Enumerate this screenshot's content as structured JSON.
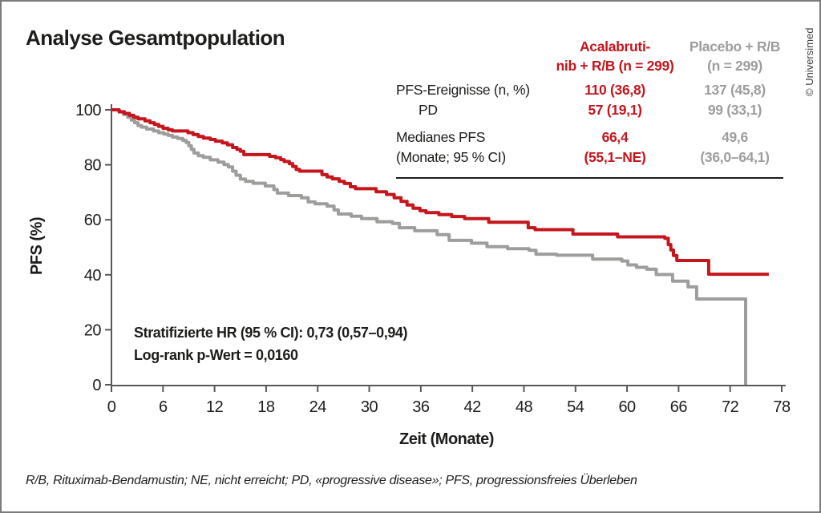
{
  "title": "Analyse Gesamtpopulation",
  "credit": "© Universimed",
  "footnote": "R/B, Rituximab-Bendamustin; NE, nicht erreicht; PD, «progressive disease»; PFS, progressionsfreies Überleben",
  "stats_table": {
    "acala_header_line1": "Acalabruti-",
    "acala_header_line2": "nib + R/B (n = 299)",
    "placebo_header_line1": "Placebo + R/B",
    "placebo_header_line2": "(n = 299)",
    "acala_color": "#c4161c",
    "placebo_color": "#9d9d9c",
    "row_pfs_events": {
      "label": "PFS-Ereignisse (n, %)",
      "acala": "110 (36,8)",
      "placebo": "137 (45,8)"
    },
    "row_pd": {
      "label": "PD",
      "acala": "57 (19,1)",
      "placebo": "99 (33,1)"
    },
    "row_median": {
      "label_line1": "Medianes PFS",
      "label_line2": "(Monate; 95 % CI)",
      "acala_line1": "66,4",
      "acala_line2": "(55,1–NE)",
      "placebo_line1": "49,6",
      "placebo_line2": "(36,0–64,1)"
    }
  },
  "chart_data": {
    "type": "line",
    "subtype": "kaplan-meier-step",
    "title": "Analyse Gesamtpopulation",
    "xlabel": "Zeit (Monate)",
    "ylabel": "PFS (%)",
    "xlim": [
      0,
      78
    ],
    "ylim": [
      0,
      100
    ],
    "x_ticks": [
      0,
      6,
      12,
      18,
      24,
      30,
      36,
      42,
      48,
      54,
      60,
      66,
      72,
      78
    ],
    "y_ticks": [
      0,
      20,
      40,
      60,
      80,
      100
    ],
    "grid": false,
    "legend_position": "table-top-right",
    "annotations": [
      "Stratifizierte HR (95 % CI): 0,73 (0,57–0,94)",
      "Log-rank p-Wert = 0,0160"
    ],
    "series": [
      {
        "id": "placebo-curve",
        "name": "Placebo + R/B (n = 299)",
        "color": "#9d9d9c",
        "median_pfs_months": "49,6 (36,0–64,1)",
        "events": "137 (45,8)",
        "points": [
          [
            0,
            100
          ],
          [
            0.9,
            99.2
          ],
          [
            1.4,
            98.3
          ],
          [
            1.9,
            97.3
          ],
          [
            2.3,
            96.3
          ],
          [
            2.7,
            95.3
          ],
          [
            3.1,
            94.3
          ],
          [
            3.5,
            93.7
          ],
          [
            4.1,
            93
          ],
          [
            4.9,
            92.3
          ],
          [
            5.5,
            91.7
          ],
          [
            6.1,
            91.2
          ],
          [
            6.6,
            90.7
          ],
          [
            7.1,
            90.1
          ],
          [
            7.7,
            89.6
          ],
          [
            8.3,
            88.9
          ],
          [
            8.7,
            88.1
          ],
          [
            9,
            86.9
          ],
          [
            9.3,
            85.6
          ],
          [
            9.6,
            84.3
          ],
          [
            10.1,
            83.3
          ],
          [
            10.7,
            82.7
          ],
          [
            11.5,
            81.8
          ],
          [
            12.4,
            81
          ],
          [
            13.1,
            80.1
          ],
          [
            13.6,
            79.2
          ],
          [
            14.1,
            77.7
          ],
          [
            14.5,
            76.2
          ],
          [
            15,
            74.8
          ],
          [
            15.6,
            74
          ],
          [
            16.5,
            73.3
          ],
          [
            17.9,
            72.3
          ],
          [
            18.9,
            71
          ],
          [
            19.3,
            69.7
          ],
          [
            20.6,
            68.8
          ],
          [
            22.1,
            68
          ],
          [
            22.9,
            66.5
          ],
          [
            23.7,
            65.8
          ],
          [
            25.1,
            65
          ],
          [
            25.9,
            63.6
          ],
          [
            26.4,
            62.1
          ],
          [
            27.9,
            61.3
          ],
          [
            29.1,
            60.4
          ],
          [
            30.9,
            59.3
          ],
          [
            32.7,
            58.7
          ],
          [
            33.5,
            57.1
          ],
          [
            35.3,
            56
          ],
          [
            37.9,
            54.6
          ],
          [
            39.3,
            52.5
          ],
          [
            41.9,
            51.5
          ],
          [
            43.7,
            50.2
          ],
          [
            46.1,
            49.5
          ],
          [
            48.6,
            48.9
          ],
          [
            49.4,
            47.5
          ],
          [
            51.8,
            47.1
          ],
          [
            56,
            45.7
          ],
          [
            59.4,
            45
          ],
          [
            60.1,
            43.6
          ],
          [
            61.1,
            42.7
          ],
          [
            62.3,
            42
          ],
          [
            63.4,
            40.1
          ],
          [
            65.3,
            37.7
          ],
          [
            67.1,
            35.6
          ],
          [
            68.1,
            31.2
          ],
          [
            73.8,
            31.2
          ],
          [
            73.8,
            0
          ]
        ]
      },
      {
        "id": "acalabrutinib-curve",
        "name": "Acalabrutinib + R/B (n = 299)",
        "color": "#c4161c",
        "median_pfs_months": "66,4 (55,1–NE)",
        "events": "110 (36,8)",
        "points": [
          [
            0,
            100
          ],
          [
            0.9,
            99.3
          ],
          [
            1.5,
            98.7
          ],
          [
            2.1,
            98
          ],
          [
            2.6,
            97.3
          ],
          [
            3.1,
            96.7
          ],
          [
            3.9,
            96
          ],
          [
            4.5,
            95.3
          ],
          [
            5,
            94.7
          ],
          [
            5.5,
            94
          ],
          [
            6,
            93.3
          ],
          [
            6.6,
            92.7
          ],
          [
            7.1,
            92.3
          ],
          [
            8.9,
            91.7
          ],
          [
            9.5,
            91
          ],
          [
            10.1,
            90.3
          ],
          [
            10.7,
            89.7
          ],
          [
            11.5,
            89.2
          ],
          [
            12.1,
            88.6
          ],
          [
            12.9,
            88
          ],
          [
            13.5,
            87.3
          ],
          [
            14.1,
            86.3
          ],
          [
            14.6,
            85.6
          ],
          [
            15,
            84.9
          ],
          [
            15.4,
            83.7
          ],
          [
            18.4,
            83.1
          ],
          [
            19.1,
            82.6
          ],
          [
            19.7,
            81.9
          ],
          [
            20.1,
            81.2
          ],
          [
            20.7,
            80.4
          ],
          [
            21.1,
            79.4
          ],
          [
            21.5,
            78.3
          ],
          [
            21.9,
            77.7
          ],
          [
            24.5,
            76.4
          ],
          [
            25.1,
            75.6
          ],
          [
            25.7,
            74.9
          ],
          [
            26.5,
            74
          ],
          [
            27.1,
            73.2
          ],
          [
            27.8,
            72
          ],
          [
            28.4,
            71.3
          ],
          [
            30.8,
            70.2
          ],
          [
            32,
            69.2
          ],
          [
            32.9,
            68
          ],
          [
            33.7,
            66.7
          ],
          [
            34.4,
            65.4
          ],
          [
            35.1,
            64.2
          ],
          [
            35.9,
            63.3
          ],
          [
            36.6,
            62.6
          ],
          [
            38.1,
            61.9
          ],
          [
            39.6,
            61.2
          ],
          [
            41.1,
            60.4
          ],
          [
            43.9,
            59.1
          ],
          [
            48.5,
            57.1
          ],
          [
            49.3,
            56.4
          ],
          [
            53.7,
            54.8
          ],
          [
            58.9,
            53.8
          ],
          [
            64.4,
            53.3
          ],
          [
            64.8,
            51
          ],
          [
            65.1,
            49
          ],
          [
            65.4,
            47
          ],
          [
            65.8,
            45.2
          ],
          [
            69.5,
            40.2
          ],
          [
            76.5,
            40.2
          ]
        ]
      }
    ]
  }
}
